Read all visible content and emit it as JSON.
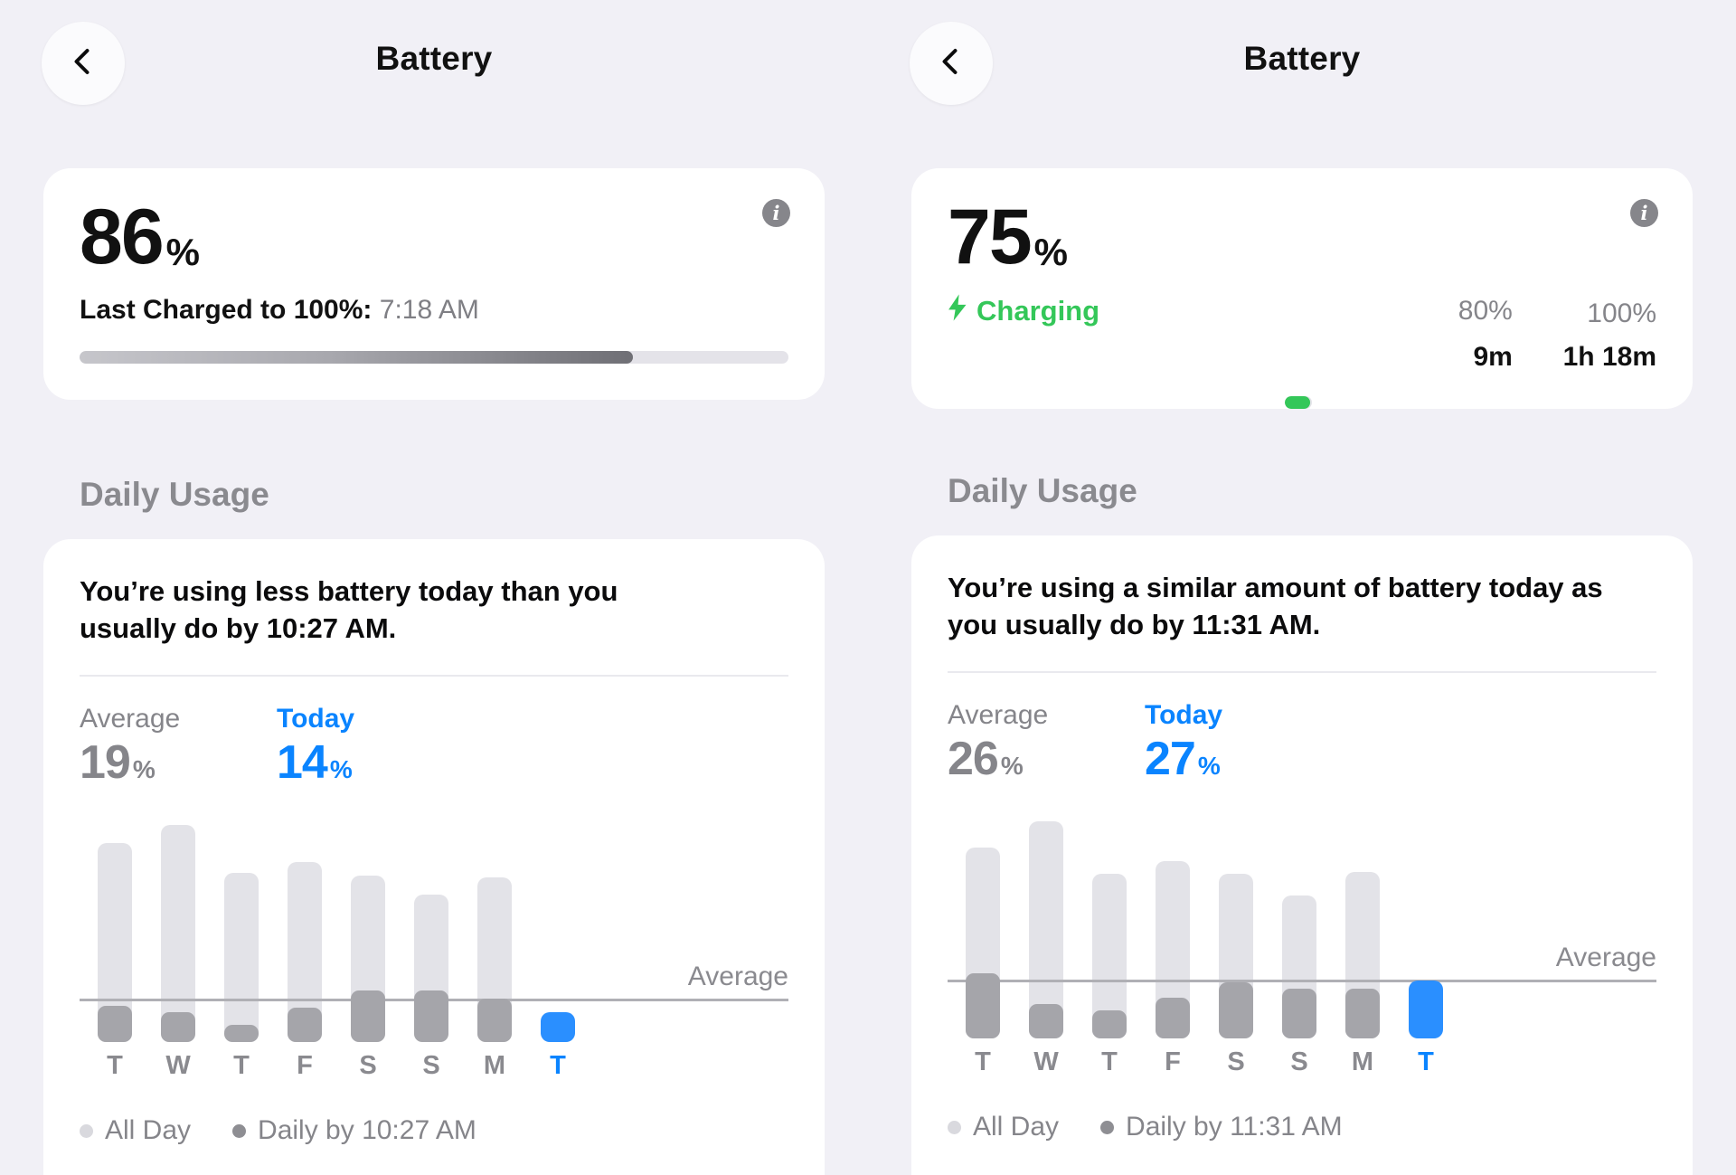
{
  "colors": {
    "background": "#f1f0f6",
    "card": "#ffffff",
    "accent_blue": "#0a84ff",
    "bar_blue": "#2a8fff",
    "charging_green": "#34c759",
    "gray_text": "#85858a",
    "bar_light": "#e3e3e8",
    "bar_dark": "#a5a5aa",
    "average_line_gray": "#b0b0b5",
    "level_fill_gradient_end": "#6f6f75"
  },
  "icons": {
    "info_glyph": "i"
  },
  "panels": [
    {
      "title": "Battery",
      "battery_card": {
        "percent": "86",
        "percent_unit": "%",
        "last_charged_label": "Last Charged to 100%:",
        "last_charged_time": "7:18 AM",
        "level_fill_percent": 78
      },
      "daily_usage": {
        "section_header": "Daily Usage",
        "headline": "You’re using less battery today than you usually do by 10:27 AM.",
        "average_label": "Average",
        "average_value": "19",
        "today_label": "Today",
        "today_value": "14",
        "unit": "%",
        "chart_data": {
          "type": "bar",
          "categories": [
            "T",
            "W",
            "T",
            "F",
            "S",
            "S",
            "M",
            "T"
          ],
          "series": [
            {
              "name": "All Day",
              "values": [
                92,
                100,
                78,
                83,
                77,
                68,
                76,
                null
              ]
            },
            {
              "name": "Daily by 10:27 AM",
              "values": [
                17,
                14,
                8,
                16,
                24,
                24,
                20,
                null
              ]
            },
            {
              "name": "Today",
              "values": [
                null,
                null,
                null,
                null,
                null,
                null,
                null,
                14
              ]
            }
          ],
          "average_line": 19,
          "average_label": "Average",
          "today_index": 7,
          "ylim": [
            0,
            100
          ],
          "units": "percent_battery",
          "legend_position": "bottom"
        },
        "legend": [
          {
            "label": "All Day"
          },
          {
            "label": "Daily by 10:27 AM"
          }
        ]
      }
    },
    {
      "title": "Battery",
      "battery_card": {
        "percent": "75",
        "percent_unit": "%",
        "charging_label": "Charging",
        "milestone_80_label": "80%",
        "milestone_100_label": "100%",
        "time_to_80": "9m",
        "time_to_100": "1h 18m",
        "segment_split_percent": 79.7,
        "fill_percent_of_segment": 93.5
      },
      "daily_usage": {
        "section_header": "Daily Usage",
        "headline": "You’re using a similar amount of battery today as you usually do by 11:31 AM.",
        "average_label": "Average",
        "average_value": "26",
        "today_label": "Today",
        "today_value": "27",
        "unit": "%",
        "chart_data": {
          "type": "bar",
          "categories": [
            "T",
            "W",
            "T",
            "F",
            "S",
            "S",
            "M",
            "T"
          ],
          "series": [
            {
              "name": "All Day",
              "values": [
                88,
                100,
                76,
                82,
                76,
                66,
                77,
                null
              ]
            },
            {
              "name": "Daily by 11:31 AM",
              "values": [
                30,
                16,
                13,
                19,
                26,
                23,
                23,
                null
              ]
            },
            {
              "name": "Today",
              "values": [
                null,
                null,
                null,
                null,
                null,
                null,
                null,
                27
              ]
            }
          ],
          "average_line": 26,
          "average_label": "Average",
          "today_index": 7,
          "ylim": [
            0,
            100
          ],
          "units": "percent_battery",
          "legend_position": "bottom"
        },
        "legend": [
          {
            "label": "All Day"
          },
          {
            "label": "Daily by 11:31 AM"
          }
        ]
      }
    }
  ]
}
